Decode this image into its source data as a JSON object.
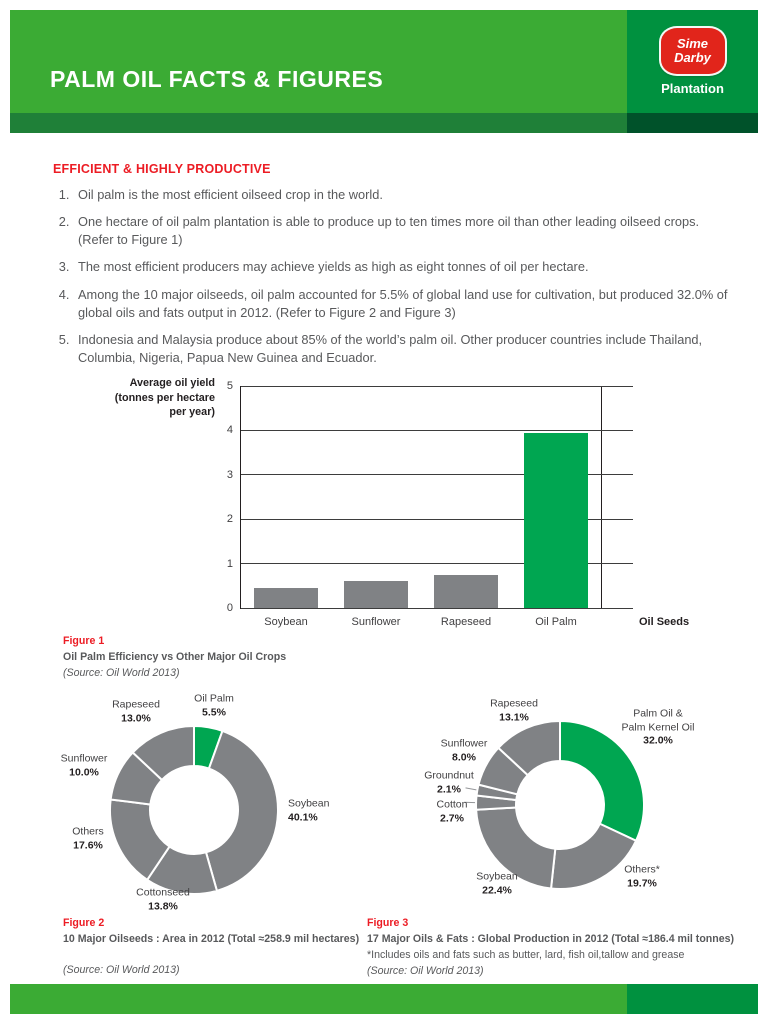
{
  "header": {
    "title": "PALM OIL FACTS & FIGURES",
    "brand": {
      "name_line1": "Sime",
      "name_line2": "Darby",
      "division": "Plantation"
    }
  },
  "intro": {
    "heading": "EFFICIENT & HIGHLY PRODUCTIVE",
    "facts": [
      "Oil palm is the most efficient oilseed crop in the world.",
      "One hectare of oil palm plantation is able to produce up to ten times more oil than other leading oilseed crops. (Refer to Figure 1)",
      "The most efficient producers may achieve yields as high as eight tonnes of oil per hectare.",
      "Among the 10 major oilseeds, oil palm accounted for 5.5% of global land use for cultivation, but produced 32.0% of global oils and fats output in 2012. (Refer to Figure 2 and Figure 3)",
      "Indonesia and Malaysia produce about 85% of the world’s palm oil. Other producer countries include Thailand, Columbia, Nigeria, Papua New Guinea and Ecuador."
    ]
  },
  "figures": {
    "fig1": {
      "label": "Figure 1",
      "title": "Oil Palm Efficiency vs Other Major Oil Crops",
      "source": "(Source: Oil World 2013)"
    },
    "fig2": {
      "label": "Figure 2",
      "title": "10 Major Oilseeds : Area in 2012 (Total ≈258.9 mil hectares)",
      "source": "(Source: Oil World 2013)"
    },
    "fig3": {
      "label": "Figure 3",
      "title": "17 Major Oils & Fats : Global Production in 2012 (Total ≈186.4 mil tonnes)",
      "note": "*Includes oils and fats such as butter, lard, fish oil,tallow and grease",
      "source": "(Source: Oil World 2013)"
    }
  },
  "chart_data": [
    {
      "type": "bar",
      "title": "Oil Palm Efficiency vs Other Major Oil Crops",
      "categories": [
        "Soybean",
        "Sunflower",
        "Rapeseed",
        "Oil Palm"
      ],
      "values": [
        0.45,
        0.6,
        0.75,
        3.95
      ],
      "bar_colors": [
        "#808285",
        "#808285",
        "#808285",
        "#00A651"
      ],
      "ylabel_lines": [
        "Average oil yield",
        "(tonnes per hectare",
        "per year)"
      ],
      "xlabel": "Oil Seeds",
      "ylim": [
        0,
        5
      ],
      "yticks": [
        0,
        1,
        2,
        3,
        4,
        5
      ],
      "grid": true
    },
    {
      "type": "pie",
      "subtype": "donut",
      "title": "10 Major Oilseeds : Area in 2012",
      "total": "258.9 mil hectares",
      "slices": [
        {
          "label": "Oil Palm",
          "pct": "5.5%",
          "value": 5.5,
          "color": "#00A651"
        },
        {
          "label": "Soybean",
          "pct": "40.1%",
          "value": 40.1,
          "color": "#808285"
        },
        {
          "label": "Cottonseed",
          "pct": "13.8%",
          "value": 13.8,
          "color": "#808285"
        },
        {
          "label": "Others",
          "pct": "17.6%",
          "value": 17.6,
          "color": "#808285"
        },
        {
          "label": "Sunflower",
          "pct": "10.0%",
          "value": 10.0,
          "color": "#808285"
        },
        {
          "label": "Rapeseed",
          "pct": "13.0%",
          "value": 13.0,
          "color": "#808285"
        }
      ]
    },
    {
      "type": "pie",
      "subtype": "donut",
      "title": "17 Major Oils & Fats : Global Production in 2012",
      "total": "186.4 mil tonnes",
      "slices": [
        {
          "label": "Palm Oil & Palm Kernel Oil",
          "label_lines": [
            "Palm Oil &",
            "Palm Kernel Oil"
          ],
          "pct": "32.0%",
          "value": 32.0,
          "color": "#00A651"
        },
        {
          "label": "Others*",
          "pct": "19.7%",
          "value": 19.7,
          "color": "#808285"
        },
        {
          "label": "Soybean",
          "pct": "22.4%",
          "value": 22.4,
          "color": "#808285"
        },
        {
          "label": "Cotton",
          "pct": "2.7%",
          "value": 2.7,
          "color": "#808285"
        },
        {
          "label": "Groundnut",
          "pct": "2.1%",
          "value": 2.1,
          "color": "#808285"
        },
        {
          "label": "Sunflower",
          "pct": "8.0%",
          "value": 8.0,
          "color": "#808285"
        },
        {
          "label": "Rapeseed",
          "pct": "13.1%",
          "value": 13.1,
          "color": "#808285"
        }
      ]
    }
  ],
  "colors": {
    "header_green": "#3BAB34",
    "brand_green": "#00913F",
    "strip_green": "#1F8038",
    "strip_dark_green": "#00522A",
    "accent_red": "#EC1C24",
    "text_gray": "#58595B",
    "bar_gray": "#808285",
    "palm_green": "#00A651",
    "logo_red": "#E1251B"
  }
}
